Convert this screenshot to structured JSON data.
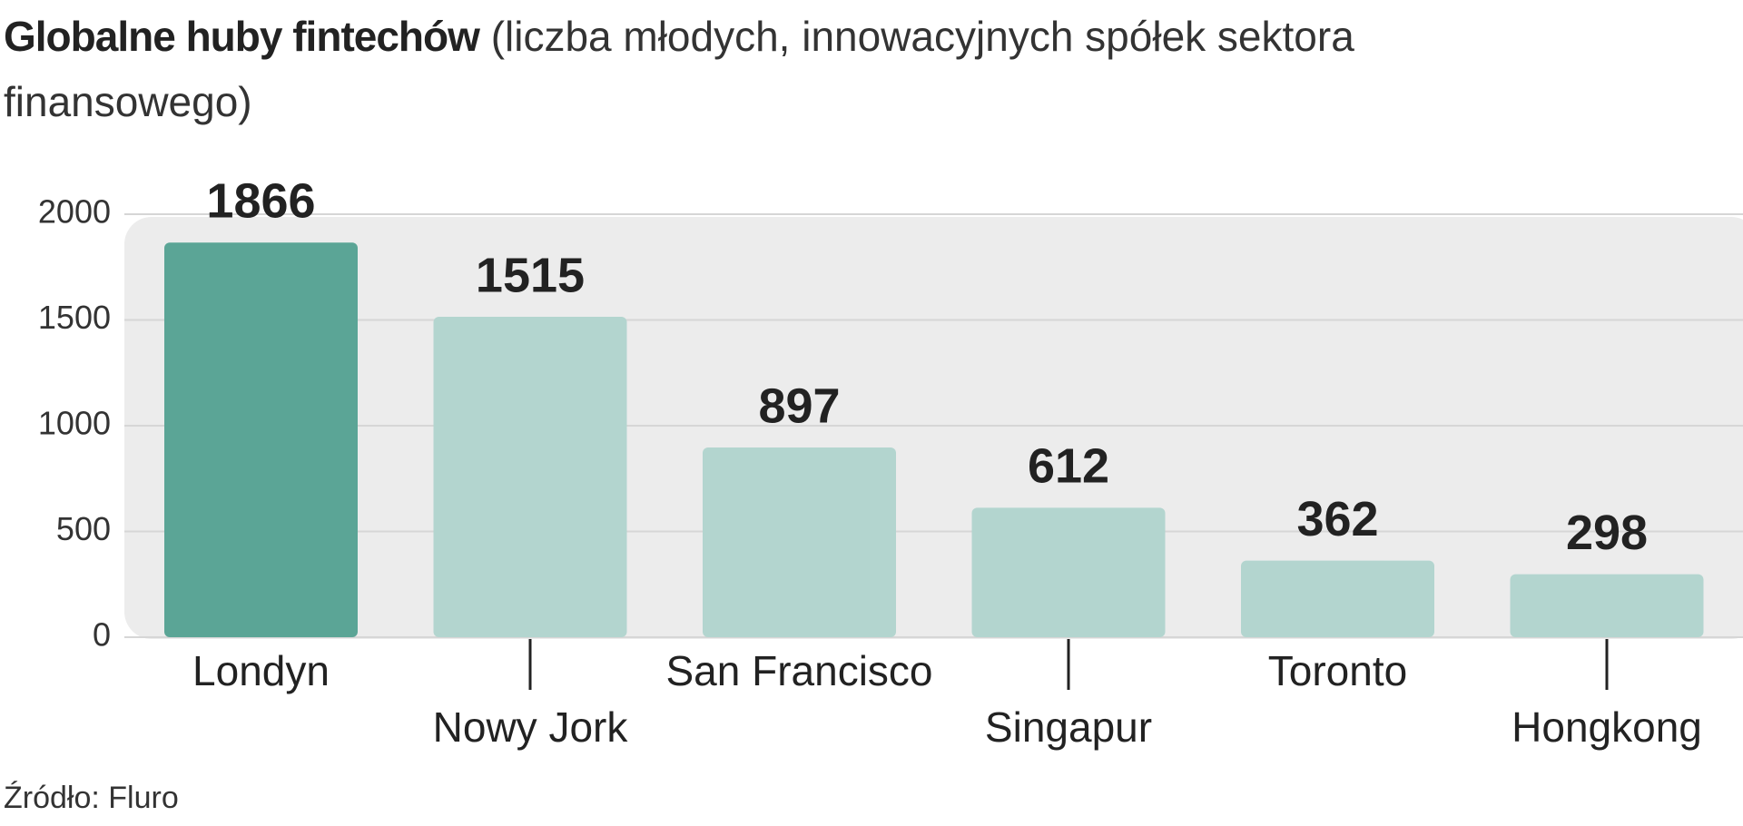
{
  "chart_data": {
    "type": "bar",
    "title": "Globalne huby fintechów",
    "subtitle": "(liczba młodych, innowacyjnych spółek sektora finansowego)",
    "categories": [
      "Londyn",
      "Nowy Jork",
      "San Francisco",
      "Singapur",
      "Toronto",
      "Hongkong"
    ],
    "values": [
      1866,
      1515,
      897,
      612,
      362,
      298
    ],
    "colors": [
      "#5ba596",
      "#b3d5cf",
      "#b3d5cf",
      "#b3d5cf",
      "#b3d5cf",
      "#b3d5cf"
    ],
    "ylim": [
      0,
      2000
    ],
    "yticks": [
      0,
      500,
      1000,
      1500,
      2000
    ],
    "grid": true,
    "source": "Źródło: Fluro"
  }
}
